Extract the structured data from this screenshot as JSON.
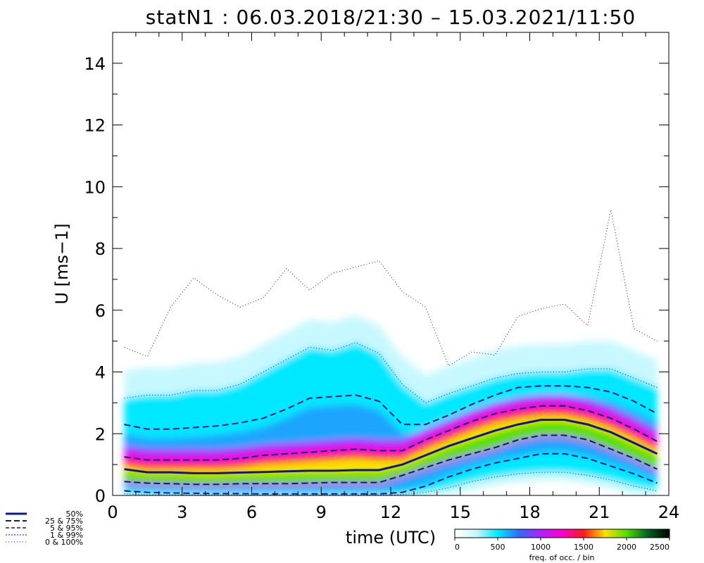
{
  "chart_data": {
    "type": "line",
    "title": "statN1 : 06.03.2018/21:30 – 15.03.2021/11:50",
    "xlabel": "time (UTC)",
    "ylabel": "U [ms−1]",
    "xlim": [
      0,
      24
    ],
    "ylim": [
      0,
      15
    ],
    "xticks": [
      "0",
      "3",
      "6",
      "9",
      "12",
      "15",
      "18",
      "21",
      "24"
    ],
    "yticks": [
      "0",
      "2",
      "4",
      "6",
      "8",
      "10",
      "12",
      "14"
    ],
    "x": [
      0.5,
      1.5,
      2.5,
      3.5,
      4.5,
      5.5,
      6.5,
      7.5,
      8.5,
      9.5,
      10.5,
      11.5,
      12.5,
      13.5,
      14.5,
      15.5,
      16.5,
      17.5,
      18.5,
      19.5,
      20.5,
      21.5,
      22.5,
      23.5
    ],
    "series": [
      {
        "name": "50%",
        "style": "solid-thick",
        "values": [
          0.85,
          0.75,
          0.75,
          0.72,
          0.72,
          0.74,
          0.76,
          0.78,
          0.8,
          0.8,
          0.82,
          0.82,
          1.0,
          1.3,
          1.6,
          1.85,
          2.1,
          2.3,
          2.45,
          2.45,
          2.3,
          2.05,
          1.7,
          1.35
        ]
      },
      {
        "name": "25%",
        "style": "dashed",
        "values": [
          0.45,
          0.4,
          0.38,
          0.36,
          0.36,
          0.38,
          0.38,
          0.38,
          0.4,
          0.42,
          0.42,
          0.42,
          0.65,
          0.9,
          1.15,
          1.35,
          1.55,
          1.8,
          1.95,
          1.95,
          1.8,
          1.5,
          1.2,
          0.85
        ]
      },
      {
        "name": "75%",
        "style": "dashed",
        "values": [
          1.25,
          1.15,
          1.15,
          1.15,
          1.15,
          1.2,
          1.3,
          1.35,
          1.4,
          1.45,
          1.5,
          1.45,
          1.45,
          1.8,
          2.1,
          2.4,
          2.65,
          2.8,
          2.9,
          2.9,
          2.75,
          2.5,
          2.15,
          1.75
        ]
      },
      {
        "name": "5%",
        "style": "dashed",
        "values": [
          0.15,
          0.1,
          0.08,
          0.07,
          0.06,
          0.06,
          0.05,
          0.05,
          0.05,
          0.05,
          0.05,
          0.05,
          0.1,
          0.3,
          0.6,
          0.85,
          1.05,
          1.2,
          1.35,
          1.35,
          1.2,
          0.95,
          0.7,
          0.4
        ]
      },
      {
        "name": "95%",
        "style": "dashed",
        "values": [
          2.3,
          2.15,
          2.15,
          2.2,
          2.25,
          2.35,
          2.5,
          2.8,
          3.15,
          3.2,
          3.25,
          3.05,
          2.3,
          2.3,
          2.6,
          2.95,
          3.25,
          3.5,
          3.55,
          3.55,
          3.5,
          3.35,
          3.05,
          2.65
        ]
      },
      {
        "name": "1%",
        "style": "dotted",
        "values": [
          0.05,
          0.02,
          0.02,
          0.02,
          0.02,
          0.02,
          0.02,
          0.02,
          0.02,
          0.02,
          0.02,
          0.02,
          0.03,
          0.1,
          0.25,
          0.45,
          0.6,
          0.7,
          0.75,
          0.75,
          0.65,
          0.5,
          0.3,
          0.15
        ]
      },
      {
        "name": "99%",
        "style": "dotted",
        "values": [
          3.15,
          3.25,
          3.25,
          3.4,
          3.4,
          3.6,
          4.0,
          4.4,
          4.8,
          4.7,
          4.95,
          4.6,
          3.6,
          3.0,
          3.3,
          3.55,
          3.8,
          3.95,
          4.0,
          4.0,
          4.1,
          4.1,
          3.8,
          3.5
        ]
      },
      {
        "name": "0%",
        "style": "dotted",
        "values": [
          0.0,
          0.0,
          0.0,
          0.0,
          0.0,
          0.0,
          0.0,
          0.0,
          0.0,
          0.0,
          0.0,
          0.0,
          0.0,
          0.0,
          0.0,
          0.0,
          0.0,
          0.0,
          0.0,
          0.0,
          0.0,
          0.0,
          0.0,
          0.0
        ]
      },
      {
        "name": "100%",
        "style": "dotted",
        "values": [
          4.8,
          4.5,
          6.1,
          7.05,
          6.5,
          6.1,
          6.4,
          7.35,
          6.65,
          7.2,
          7.4,
          7.6,
          6.6,
          6.1,
          4.2,
          4.65,
          4.55,
          5.8,
          6.05,
          6.2,
          5.5,
          9.25,
          5.4,
          5.0
        ]
      }
    ],
    "legend": [
      "50%",
      "25 &  75%",
      " 5 &  95%",
      " 1 &  99%",
      " 0 & 100%"
    ],
    "colorbar": {
      "label": "freq. of occ. / bin",
      "ticks": [
        "0",
        "500",
        "1000",
        "1500",
        "2000",
        "2500"
      ],
      "range": [
        0,
        2500
      ],
      "colors": [
        "#ffffff",
        "#c8f8ff",
        "#00e8ff",
        "#2f6bff",
        "#b020ff",
        "#ff00cc",
        "#ff1a1a",
        "#ffe000",
        "#4fe000",
        "#006020",
        "#000000"
      ]
    },
    "grid": false,
    "density_legend": "colorbar-bottom-right",
    "line_color": "#0a1a8c"
  }
}
